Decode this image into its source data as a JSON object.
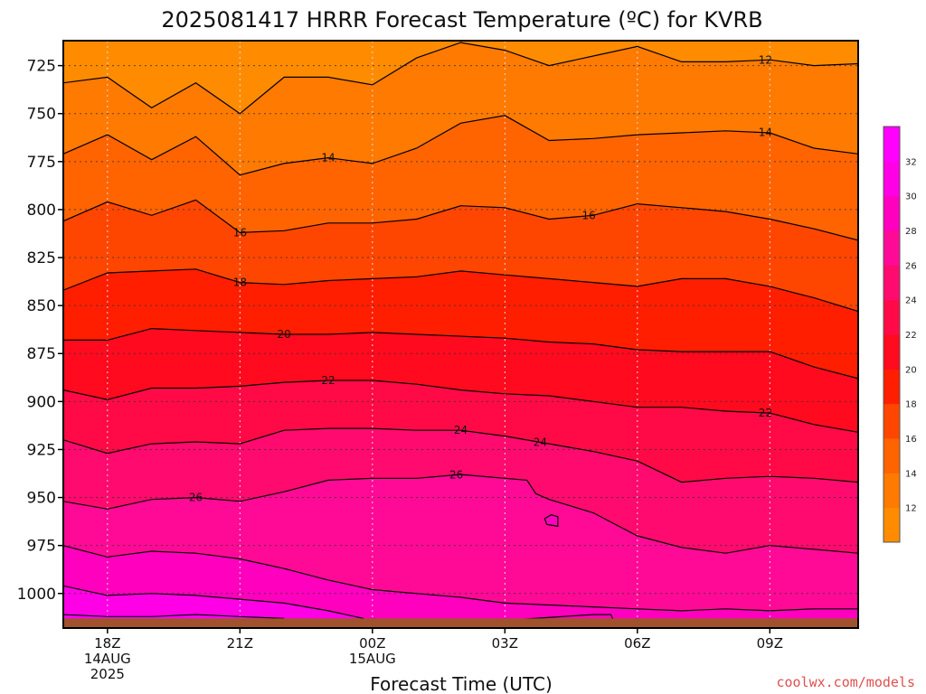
{
  "chart_data": {
    "type": "filled-contour",
    "title": "2025081417 HRRR Forecast Temperature (ºC) for KVRB",
    "xlabel": "Forecast Time (UTC)",
    "ylabel": "",
    "credit": "coolwx.com/models",
    "x_range_hours": [
      -1,
      17
    ],
    "y_range_hPa": [
      712,
      1018
    ],
    "y_scale": "linear-inverted",
    "y_ticks": [
      725,
      750,
      775,
      800,
      825,
      850,
      875,
      900,
      925,
      950,
      975,
      1000
    ],
    "x_ticks": [
      {
        "hour": 0,
        "lines": [
          "18Z",
          "14AUG",
          "2025"
        ]
      },
      {
        "hour": 3,
        "lines": [
          "21Z"
        ]
      },
      {
        "hour": 6,
        "lines": [
          "00Z",
          "15AUG"
        ]
      },
      {
        "hour": 9,
        "lines": [
          "03Z"
        ]
      },
      {
        "hour": 12,
        "lines": [
          "06Z"
        ]
      },
      {
        "hour": 15,
        "lines": [
          "09Z"
        ]
      }
    ],
    "grid": true,
    "contour_interval": 2,
    "colorbar_levels": [
      12,
      14,
      16,
      18,
      20,
      22,
      24,
      26,
      28,
      30,
      32
    ],
    "colorbar_placement": "right",
    "colors": {
      "10": "#ff8c00",
      "12": "#ff7a00",
      "14": "#ff6400",
      "16": "#ff4600",
      "18": "#ff1e00",
      "20": "#ff0a1e",
      "22": "#ff0a46",
      "24": "#ff0a6e",
      "26": "#ff0a96",
      "28": "#ff00be",
      "30": "#ff00e6",
      "32": "#ff00ff",
      "ground": "#a0522d"
    },
    "contours": [
      {
        "level": 12,
        "label_hour": 14.9,
        "points": [
          [
            -1,
            734
          ],
          [
            0,
            731
          ],
          [
            1,
            747
          ],
          [
            2,
            734
          ],
          [
            3,
            750
          ],
          [
            4,
            731
          ],
          [
            5,
            731
          ],
          [
            6,
            735
          ],
          [
            7,
            721
          ],
          [
            8,
            713
          ],
          [
            9,
            717
          ],
          [
            10,
            725
          ],
          [
            11,
            720
          ],
          [
            12,
            715
          ],
          [
            13,
            723
          ],
          [
            14,
            723
          ],
          [
            15,
            722
          ],
          [
            16,
            725
          ],
          [
            17,
            724
          ]
        ]
      },
      {
        "level": 14,
        "label_hour": 5,
        "points": [
          [
            -1,
            771
          ],
          [
            0,
            761
          ],
          [
            1,
            774
          ],
          [
            2,
            762
          ],
          [
            3,
            782
          ],
          [
            4,
            776
          ],
          [
            5,
            773
          ],
          [
            6,
            776
          ],
          [
            7,
            768
          ],
          [
            8,
            755
          ],
          [
            9,
            751
          ],
          [
            10,
            764
          ],
          [
            11,
            763
          ],
          [
            12,
            761
          ],
          [
            13,
            760
          ],
          [
            14,
            759
          ],
          [
            15,
            760
          ],
          [
            16,
            768
          ],
          [
            17,
            771
          ]
        ]
      },
      {
        "level": 16,
        "label_hour": 3,
        "points": [
          [
            -1,
            806
          ],
          [
            0,
            796
          ],
          [
            1,
            803
          ],
          [
            2,
            795
          ],
          [
            3,
            812
          ],
          [
            4,
            811
          ],
          [
            5,
            807
          ],
          [
            6,
            807
          ],
          [
            7,
            805
          ],
          [
            8,
            798
          ],
          [
            9,
            799
          ],
          [
            10,
            805
          ],
          [
            11,
            803
          ],
          [
            12,
            797
          ],
          [
            13,
            799
          ],
          [
            14,
            801
          ],
          [
            15,
            805
          ],
          [
            16,
            810
          ],
          [
            17,
            816
          ]
        ]
      },
      {
        "level": 18,
        "label_hour": 3,
        "points": [
          [
            -1,
            842
          ],
          [
            0,
            833
          ],
          [
            1,
            832
          ],
          [
            2,
            831
          ],
          [
            3,
            838
          ],
          [
            4,
            839
          ],
          [
            5,
            837
          ],
          [
            6,
            836
          ],
          [
            7,
            835
          ],
          [
            8,
            832
          ],
          [
            9,
            834
          ],
          [
            10,
            836
          ],
          [
            11,
            838
          ],
          [
            12,
            840
          ],
          [
            13,
            836
          ],
          [
            14,
            836
          ],
          [
            15,
            840
          ],
          [
            16,
            846
          ],
          [
            17,
            853
          ]
        ]
      },
      {
        "level": 20,
        "label_hour": 4,
        "points": [
          [
            -1,
            868
          ],
          [
            0,
            868
          ],
          [
            1,
            862
          ],
          [
            2,
            863
          ],
          [
            3,
            864
          ],
          [
            4,
            865
          ],
          [
            5,
            865
          ],
          [
            6,
            864
          ],
          [
            7,
            865
          ],
          [
            8,
            866
          ],
          [
            9,
            867
          ],
          [
            10,
            869
          ],
          [
            11,
            870
          ],
          [
            12,
            873
          ],
          [
            13,
            874
          ],
          [
            14,
            874
          ],
          [
            15,
            874
          ],
          [
            16,
            882
          ],
          [
            17,
            888
          ]
        ]
      },
      {
        "level": 22,
        "label_hour": 5,
        "points": [
          [
            -1,
            894
          ],
          [
            0,
            899
          ],
          [
            1,
            893
          ],
          [
            2,
            893
          ],
          [
            3,
            892
          ],
          [
            4,
            890
          ],
          [
            5,
            889
          ],
          [
            6,
            889
          ],
          [
            7,
            891
          ],
          [
            8,
            894
          ],
          [
            9,
            896
          ],
          [
            10,
            897
          ],
          [
            11,
            900
          ],
          [
            12,
            903
          ],
          [
            13,
            903
          ],
          [
            14,
            905
          ],
          [
            15,
            906
          ],
          [
            16,
            912
          ],
          [
            17,
            916
          ]
        ]
      },
      {
        "level": 24,
        "label_hour": 8,
        "points": [
          [
            -1,
            920
          ],
          [
            0,
            927
          ],
          [
            1,
            922
          ],
          [
            2,
            921
          ],
          [
            3,
            922
          ],
          [
            4,
            915
          ],
          [
            5,
            914
          ],
          [
            6,
            914
          ],
          [
            7,
            915
          ],
          [
            8,
            915
          ],
          [
            9,
            918
          ],
          [
            10,
            922
          ],
          [
            11,
            926
          ],
          [
            12,
            931
          ],
          [
            13,
            942
          ],
          [
            14,
            940
          ],
          [
            15,
            939
          ],
          [
            16,
            940
          ],
          [
            17,
            942
          ]
        ]
      },
      {
        "level": 26,
        "label_hour": 2,
        "points": [
          [
            -1,
            952
          ],
          [
            0,
            956
          ],
          [
            1,
            951
          ],
          [
            2,
            950
          ],
          [
            3,
            952
          ],
          [
            4,
            947
          ],
          [
            5,
            941
          ],
          [
            6,
            940
          ],
          [
            7,
            940
          ],
          [
            8,
            938
          ],
          [
            9,
            940
          ],
          [
            9.5,
            941
          ],
          [
            9.7,
            948
          ],
          [
            10,
            951
          ],
          [
            11,
            958
          ],
          [
            12,
            970
          ],
          [
            13,
            976
          ],
          [
            14,
            979
          ],
          [
            15,
            975
          ],
          [
            16,
            977
          ],
          [
            17,
            979
          ]
        ]
      },
      {
        "level": 28,
        "label_hour": -1,
        "points": [
          [
            -1,
            975
          ],
          [
            0,
            981
          ],
          [
            1,
            978
          ],
          [
            2,
            979
          ],
          [
            3,
            982
          ],
          [
            4,
            987
          ],
          [
            5,
            993
          ],
          [
            6,
            998
          ],
          [
            7,
            1000
          ],
          [
            8,
            1002
          ],
          [
            9,
            1005
          ],
          [
            10,
            1006
          ],
          [
            11,
            1007
          ],
          [
            12,
            1008
          ],
          [
            13,
            1009
          ],
          [
            14,
            1008
          ],
          [
            15,
            1009
          ],
          [
            16,
            1008
          ],
          [
            17,
            1008
          ]
        ]
      },
      {
        "level": 30,
        "label_hour": -1,
        "points": [
          [
            -1,
            996
          ],
          [
            0,
            1001
          ],
          [
            1,
            1000
          ],
          [
            2,
            1001
          ],
          [
            3,
            1003
          ],
          [
            4,
            1005
          ],
          [
            5,
            1009
          ],
          [
            5.8,
            1013
          ]
        ]
      },
      {
        "level": 32,
        "label_hour": -1,
        "points": [
          [
            -1,
            1011
          ],
          [
            0,
            1012
          ],
          [
            1,
            1012
          ],
          [
            2,
            1011
          ],
          [
            3,
            1012
          ],
          [
            4,
            1013
          ]
        ]
      }
    ],
    "pocket": {
      "level": 28,
      "hour": 10,
      "points": [
        [
          9.9,
          961
        ],
        [
          10.05,
          959
        ],
        [
          10.2,
          960
        ],
        [
          10.2,
          965
        ],
        [
          9.95,
          964
        ]
      ]
    },
    "tail28": {
      "points": [
        [
          9,
          1014
        ],
        [
          11,
          1011
        ],
        [
          11.4,
          1011
        ],
        [
          11.5,
          1016
        ],
        [
          9,
          1017
        ]
      ]
    },
    "ground_top_hPa": 1013
  }
}
